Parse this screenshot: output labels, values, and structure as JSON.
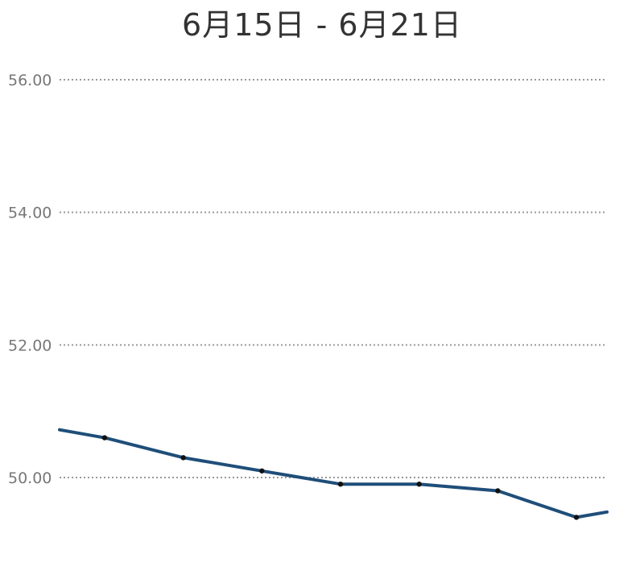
{
  "chart_data": {
    "type": "line",
    "title": "6月15日 - 6月21日",
    "xlabel": "",
    "ylabel": "",
    "ylim": [
      48.6,
      56.2
    ],
    "y_ticks": [
      "50.00",
      "52.00",
      "54.00",
      "56.00"
    ],
    "grid": true,
    "legend": "none",
    "line_color": "#1f4e79",
    "marker_color": "#111111",
    "grid_color": "#999999",
    "series": [
      {
        "values": [
          50.6,
          50.3,
          50.1,
          49.9,
          49.9,
          49.8,
          49.4
        ],
        "continues_left": 50.72,
        "continues_right": 49.48
      }
    ]
  }
}
